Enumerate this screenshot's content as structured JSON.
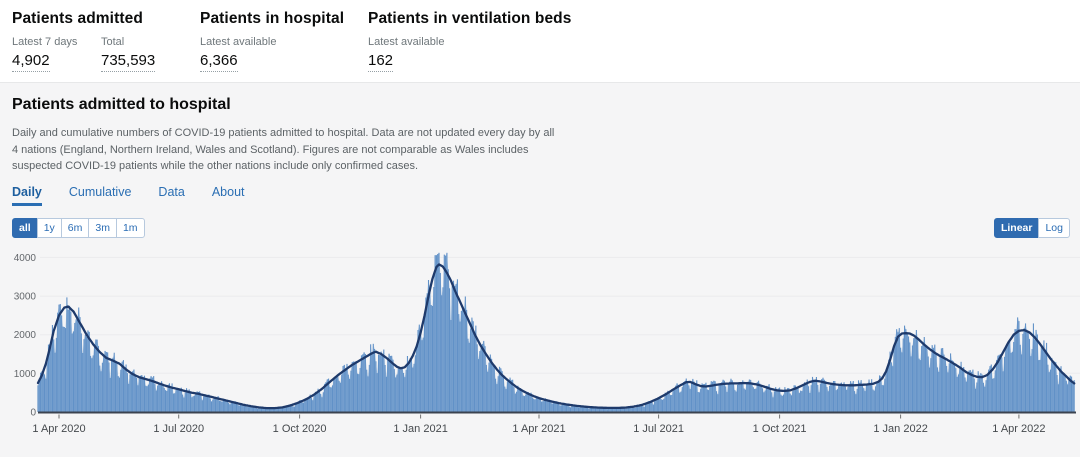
{
  "kpis": {
    "items": [
      {
        "title": "Patients admitted",
        "metrics": [
          {
            "label": "Latest 7 days",
            "value": "4,902"
          },
          {
            "label": "Total",
            "value": "735,593"
          }
        ]
      },
      {
        "title": "Patients in hospital",
        "metrics": [
          {
            "label": "Latest available",
            "value": "6,366"
          }
        ]
      },
      {
        "title": "Patients in ventilation beds",
        "metrics": [
          {
            "label": "Latest available",
            "value": "162"
          }
        ]
      }
    ]
  },
  "section": {
    "title": "Patients admitted to hospital",
    "description": "Daily and cumulative numbers of COVID-19 patients admitted to hospital. Data are not updated every day by all 4 nations (England, Northern Ireland, Wales and Scotland). Figures are not comparable as Wales includes suspected COVID-19 patients while the other nations include only confirmed cases.",
    "tabs": [
      {
        "label": "Daily",
        "active": true
      },
      {
        "label": "Cumulative",
        "active": false
      },
      {
        "label": "Data",
        "active": false
      },
      {
        "label": "About",
        "active": false
      }
    ],
    "range_buttons": [
      {
        "label": "all",
        "active": true
      },
      {
        "label": "1y",
        "active": false
      },
      {
        "label": "6m",
        "active": false
      },
      {
        "label": "3m",
        "active": false
      },
      {
        "label": "1m",
        "active": false
      }
    ],
    "scale_buttons": [
      {
        "label": "Linear",
        "active": true
      },
      {
        "label": "Log",
        "active": false
      }
    ]
  },
  "colors": {
    "accent_blue": "#2f6bb0",
    "link_blue": "#2a6eb3",
    "bar": "#6191c7",
    "bar_light": "#a7c2e0",
    "avg_line": "#1e3a6b",
    "axis": "#3b4350",
    "grid": "#ebebed",
    "panel_bg": "#f5f5f6"
  },
  "chart_data": {
    "type": "bar",
    "title": "Patients admitted to hospital — daily admissions with 7-day average line",
    "xlabel": "",
    "ylabel": "",
    "ylim": [
      0,
      4000
    ],
    "grid": true,
    "legend": "none",
    "bars_note": "daily admission bars fluctuate around the trend line with weekend dips; peak bars reach ~4100 in mid-Jan 2021 and ~3100 in early Apr 2020",
    "yticks": [
      0,
      1000,
      2000,
      3000,
      4000
    ],
    "xticks": [
      {
        "date": "2020-04-01",
        "label": "1 Apr 2020"
      },
      {
        "date": "2020-07-01",
        "label": "1 Jul 2020"
      },
      {
        "date": "2020-10-01",
        "label": "1 Oct 2020"
      },
      {
        "date": "2021-01-01",
        "label": "1 Jan 2021"
      },
      {
        "date": "2021-04-01",
        "label": "1 Apr 2021"
      },
      {
        "date": "2021-07-01",
        "label": "1 Jul 2021"
      },
      {
        "date": "2021-10-01",
        "label": "1 Oct 2021"
      },
      {
        "date": "2022-01-01",
        "label": "1 Jan 2022"
      },
      {
        "date": "2022-04-01",
        "label": "1 Apr 2022"
      }
    ],
    "series": [
      {
        "name": "7-day average admissions (trend keypoints)",
        "points": [
          [
            "2020-03-16",
            750
          ],
          [
            "2020-03-19",
            950
          ],
          [
            "2020-03-22",
            1250
          ],
          [
            "2020-03-25",
            1650
          ],
          [
            "2020-03-28",
            2100
          ],
          [
            "2020-04-01",
            2500
          ],
          [
            "2020-04-05",
            2700
          ],
          [
            "2020-04-08",
            2730
          ],
          [
            "2020-04-12",
            2600
          ],
          [
            "2020-04-17",
            2300
          ],
          [
            "2020-04-22",
            2000
          ],
          [
            "2020-04-27",
            1750
          ],
          [
            "2020-05-02",
            1550
          ],
          [
            "2020-05-07",
            1400
          ],
          [
            "2020-05-12",
            1330
          ],
          [
            "2020-05-17",
            1250
          ],
          [
            "2020-05-22",
            1100
          ],
          [
            "2020-05-27",
            980
          ],
          [
            "2020-06-01",
            900
          ],
          [
            "2020-06-06",
            850
          ],
          [
            "2020-06-11",
            800
          ],
          [
            "2020-06-16",
            740
          ],
          [
            "2020-06-21",
            680
          ],
          [
            "2020-06-26",
            630
          ],
          [
            "2020-07-01",
            590
          ],
          [
            "2020-07-06",
            540
          ],
          [
            "2020-07-11",
            500
          ],
          [
            "2020-07-16",
            470
          ],
          [
            "2020-07-21",
            430
          ],
          [
            "2020-07-26",
            390
          ],
          [
            "2020-08-01",
            340
          ],
          [
            "2020-08-07",
            290
          ],
          [
            "2020-08-13",
            240
          ],
          [
            "2020-08-19",
            190
          ],
          [
            "2020-08-25",
            150
          ],
          [
            "2020-08-31",
            120
          ],
          [
            "2020-09-06",
            100
          ],
          [
            "2020-09-12",
            100
          ],
          [
            "2020-09-18",
            120
          ],
          [
            "2020-09-24",
            170
          ],
          [
            "2020-09-30",
            240
          ],
          [
            "2020-10-06",
            330
          ],
          [
            "2020-10-12",
            450
          ],
          [
            "2020-10-18",
            600
          ],
          [
            "2020-10-24",
            780
          ],
          [
            "2020-10-30",
            950
          ],
          [
            "2020-11-05",
            1100
          ],
          [
            "2020-11-10",
            1220
          ],
          [
            "2020-11-15",
            1320
          ],
          [
            "2020-11-20",
            1420
          ],
          [
            "2020-11-25",
            1520
          ],
          [
            "2020-11-28",
            1560
          ],
          [
            "2020-12-02",
            1500
          ],
          [
            "2020-12-06",
            1400
          ],
          [
            "2020-12-10",
            1280
          ],
          [
            "2020-12-14",
            1170
          ],
          [
            "2020-12-17",
            1130
          ],
          [
            "2020-12-20",
            1160
          ],
          [
            "2020-12-23",
            1270
          ],
          [
            "2020-12-26",
            1450
          ],
          [
            "2020-12-29",
            1700
          ],
          [
            "2021-01-01",
            2050
          ],
          [
            "2021-01-04",
            2500
          ],
          [
            "2021-01-07",
            3000
          ],
          [
            "2021-01-10",
            3450
          ],
          [
            "2021-01-13",
            3750
          ],
          [
            "2021-01-15",
            3820
          ],
          [
            "2021-01-18",
            3760
          ],
          [
            "2021-01-21",
            3600
          ],
          [
            "2021-01-24",
            3400
          ],
          [
            "2021-01-27",
            3150
          ],
          [
            "2021-01-31",
            2850
          ],
          [
            "2021-02-04",
            2550
          ],
          [
            "2021-02-08",
            2250
          ],
          [
            "2021-02-12",
            1950
          ],
          [
            "2021-02-16",
            1700
          ],
          [
            "2021-02-20",
            1480
          ],
          [
            "2021-02-24",
            1280
          ],
          [
            "2021-02-28",
            1100
          ],
          [
            "2021-03-04",
            950
          ],
          [
            "2021-03-08",
            830
          ],
          [
            "2021-03-12",
            720
          ],
          [
            "2021-03-16",
            620
          ],
          [
            "2021-03-20",
            540
          ],
          [
            "2021-03-24",
            470
          ],
          [
            "2021-03-28",
            410
          ],
          [
            "2021-04-01",
            360
          ],
          [
            "2021-04-06",
            310
          ],
          [
            "2021-04-11",
            270
          ],
          [
            "2021-04-16",
            230
          ],
          [
            "2021-04-21",
            200
          ],
          [
            "2021-04-26",
            175
          ],
          [
            "2021-05-01",
            155
          ],
          [
            "2021-05-07",
            135
          ],
          [
            "2021-05-13",
            120
          ],
          [
            "2021-05-19",
            110
          ],
          [
            "2021-05-25",
            105
          ],
          [
            "2021-05-31",
            105
          ],
          [
            "2021-06-06",
            115
          ],
          [
            "2021-06-12",
            140
          ],
          [
            "2021-06-18",
            180
          ],
          [
            "2021-06-24",
            250
          ],
          [
            "2021-06-30",
            340
          ],
          [
            "2021-07-06",
            450
          ],
          [
            "2021-07-12",
            580
          ],
          [
            "2021-07-18",
            700
          ],
          [
            "2021-07-22",
            770
          ],
          [
            "2021-07-25",
            780
          ],
          [
            "2021-07-29",
            720
          ],
          [
            "2021-08-02",
            670
          ],
          [
            "2021-08-06",
            660
          ],
          [
            "2021-08-10",
            680
          ],
          [
            "2021-08-15",
            710
          ],
          [
            "2021-08-20",
            730
          ],
          [
            "2021-08-25",
            740
          ],
          [
            "2021-08-30",
            740
          ],
          [
            "2021-09-04",
            750
          ],
          [
            "2021-09-09",
            740
          ],
          [
            "2021-09-14",
            710
          ],
          [
            "2021-09-19",
            660
          ],
          [
            "2021-09-24",
            600
          ],
          [
            "2021-09-29",
            560
          ],
          [
            "2021-10-04",
            545
          ],
          [
            "2021-10-09",
            560
          ],
          [
            "2021-10-14",
            620
          ],
          [
            "2021-10-19",
            700
          ],
          [
            "2021-10-24",
            780
          ],
          [
            "2021-10-28",
            810
          ],
          [
            "2021-11-01",
            790
          ],
          [
            "2021-11-06",
            750
          ],
          [
            "2021-11-11",
            720
          ],
          [
            "2021-11-16",
            700
          ],
          [
            "2021-11-21",
            690
          ],
          [
            "2021-11-26",
            690
          ],
          [
            "2021-12-01",
            700
          ],
          [
            "2021-12-06",
            710
          ],
          [
            "2021-12-11",
            730
          ],
          [
            "2021-12-15",
            780
          ],
          [
            "2021-12-18",
            870
          ],
          [
            "2021-12-21",
            1050
          ],
          [
            "2021-12-24",
            1350
          ],
          [
            "2021-12-27",
            1700
          ],
          [
            "2021-12-30",
            1950
          ],
          [
            "2022-01-02",
            2030
          ],
          [
            "2022-01-05",
            2040
          ],
          [
            "2022-01-08",
            2030
          ],
          [
            "2022-01-11",
            1980
          ],
          [
            "2022-01-15",
            1870
          ],
          [
            "2022-01-19",
            1740
          ],
          [
            "2022-01-23",
            1630
          ],
          [
            "2022-01-27",
            1530
          ],
          [
            "2022-01-31",
            1450
          ],
          [
            "2022-02-04",
            1380
          ],
          [
            "2022-02-08",
            1300
          ],
          [
            "2022-02-12",
            1220
          ],
          [
            "2022-02-16",
            1130
          ],
          [
            "2022-02-20",
            1030
          ],
          [
            "2022-02-24",
            960
          ],
          [
            "2022-02-28",
            910
          ],
          [
            "2022-03-04",
            900
          ],
          [
            "2022-03-08",
            960
          ],
          [
            "2022-03-12",
            1100
          ],
          [
            "2022-03-16",
            1300
          ],
          [
            "2022-03-20",
            1550
          ],
          [
            "2022-03-24",
            1800
          ],
          [
            "2022-03-28",
            2000
          ],
          [
            "2022-04-01",
            2100
          ],
          [
            "2022-04-05",
            2120
          ],
          [
            "2022-04-09",
            2060
          ],
          [
            "2022-04-13",
            1930
          ],
          [
            "2022-04-17",
            1760
          ],
          [
            "2022-04-21",
            1570
          ],
          [
            "2022-04-25",
            1380
          ],
          [
            "2022-04-29",
            1210
          ],
          [
            "2022-05-03",
            1050
          ],
          [
            "2022-05-07",
            920
          ],
          [
            "2022-05-10",
            820
          ],
          [
            "2022-05-13",
            740
          ]
        ]
      }
    ]
  }
}
